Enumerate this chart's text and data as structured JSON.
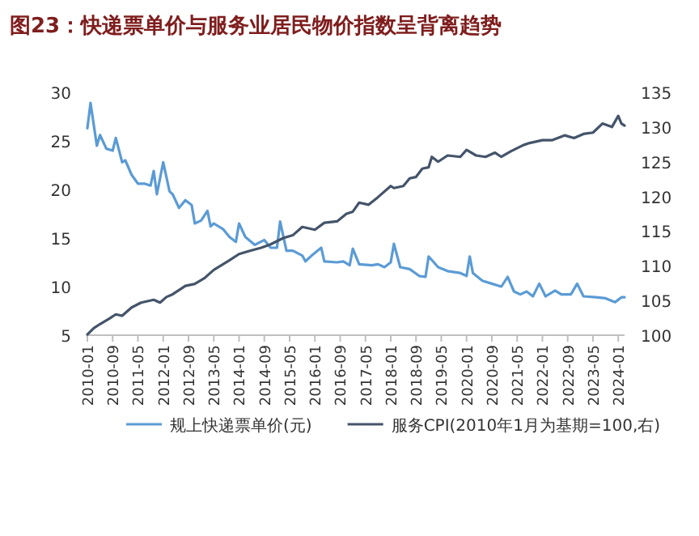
{
  "chart_data": {
    "type": "line",
    "title": "图23：快递票单价与服务业居民物价指数呈背离趋势",
    "xlim": [
      "2010-01",
      "2024-03"
    ],
    "xticks": [
      "2010-01",
      "2010-09",
      "2011-05",
      "2012-01",
      "2012-09",
      "2013-05",
      "2014-01",
      "2014-09",
      "2015-05",
      "2016-01",
      "2016-09",
      "2017-05",
      "2018-01",
      "2018-09",
      "2019-05",
      "2020-01",
      "2020-09",
      "2021-05",
      "2022-01",
      "2022-09",
      "2023-05",
      "2024-01"
    ],
    "ylim": [
      5,
      30
    ],
    "yticks": [
      5,
      10,
      15,
      20,
      25,
      30
    ],
    "y2lim": [
      100,
      135
    ],
    "y2ticks": [
      100,
      105,
      110,
      115,
      120,
      125,
      130,
      135
    ],
    "legend": "bottom",
    "line_style": "solid",
    "series": [
      {
        "name": "规上快递票单价(元)",
        "color": "#5b9bd5",
        "x": [
          "2010-01",
          "2010-02",
          "2010-04",
          "2010-05",
          "2010-07",
          "2010-09",
          "2010-10",
          "2010-12",
          "2011-01",
          "2011-03",
          "2011-05",
          "2011-07",
          "2011-09",
          "2011-10",
          "2011-11",
          "2012-01",
          "2012-03",
          "2012-04",
          "2012-06",
          "2012-08",
          "2012-10",
          "2012-11",
          "2013-01",
          "2013-03",
          "2013-04",
          "2013-05",
          "2013-08",
          "2013-10",
          "2013-12",
          "2014-01",
          "2014-03",
          "2014-06",
          "2014-09",
          "2014-11",
          "2015-01",
          "2015-02",
          "2015-04",
          "2015-06",
          "2015-09",
          "2015-10",
          "2015-12",
          "2016-03",
          "2016-04",
          "2016-08",
          "2016-10",
          "2016-12",
          "2017-01",
          "2017-03",
          "2017-07",
          "2017-09",
          "2017-11",
          "2018-01",
          "2018-02",
          "2018-04",
          "2018-07",
          "2018-10",
          "2018-12",
          "2019-01",
          "2019-04",
          "2019-07",
          "2019-11",
          "2020-01",
          "2020-02",
          "2020-03",
          "2020-06",
          "2020-09",
          "2020-12",
          "2021-02",
          "2021-04",
          "2021-06",
          "2021-08",
          "2021-10",
          "2021-12",
          "2022-02",
          "2022-05",
          "2022-07",
          "2022-10",
          "2022-12",
          "2023-02",
          "2023-06",
          "2023-09",
          "2023-12",
          "2024-02",
          "2024-03"
        ],
        "values": [
          26.3,
          28.9,
          24.5,
          25.6,
          24.2,
          24.0,
          25.3,
          22.8,
          23.0,
          21.5,
          20.6,
          20.6,
          20.4,
          21.9,
          19.5,
          22.8,
          19.8,
          19.5,
          18.1,
          18.9,
          18.4,
          16.5,
          16.8,
          17.8,
          16.2,
          16.5,
          15.9,
          15.1,
          14.6,
          16.5,
          15.1,
          14.3,
          14.8,
          14.0,
          14.0,
          16.7,
          13.7,
          13.7,
          13.2,
          12.6,
          13.2,
          14.0,
          12.6,
          12.5,
          12.6,
          12.2,
          13.9,
          12.3,
          12.2,
          12.3,
          12.0,
          12.5,
          14.4,
          12.0,
          11.8,
          11.1,
          11.0,
          13.1,
          12.0,
          11.6,
          11.4,
          11.1,
          13.1,
          11.4,
          10.6,
          10.3,
          10.0,
          11.0,
          9.5,
          9.2,
          9.5,
          9.0,
          10.3,
          9.0,
          9.6,
          9.2,
          9.2,
          10.3,
          9.0,
          8.9,
          8.8,
          8.4,
          8.9,
          8.9
        ]
      },
      {
        "name": "服务CPI(2010年1月为基期=100,右)",
        "color": "#44546a",
        "axis": "y2",
        "x": [
          "2010-01",
          "2010-03",
          "2010-05",
          "2010-08",
          "2010-10",
          "2010-12",
          "2011-03",
          "2011-06",
          "2011-10",
          "2011-12",
          "2012-02",
          "2012-04",
          "2012-08",
          "2012-11",
          "2013-02",
          "2013-05",
          "2013-10",
          "2014-01",
          "2014-04",
          "2014-08",
          "2014-11",
          "2015-03",
          "2015-06",
          "2015-09",
          "2016-01",
          "2016-04",
          "2016-08",
          "2016-11",
          "2017-01",
          "2017-03",
          "2017-06",
          "2017-09",
          "2018-01",
          "2018-02",
          "2018-05",
          "2018-07",
          "2018-09",
          "2018-11",
          "2019-01",
          "2019-02",
          "2019-04",
          "2019-07",
          "2019-11",
          "2020-01",
          "2020-04",
          "2020-07",
          "2020-10",
          "2020-12",
          "2021-03",
          "2021-07",
          "2021-09",
          "2022-01",
          "2022-04",
          "2022-08",
          "2022-11",
          "2023-02",
          "2023-05",
          "2023-08",
          "2023-11",
          "2024-01",
          "2024-02",
          "2024-03"
        ],
        "values": [
          100.1,
          101.0,
          101.6,
          102.4,
          103.0,
          102.8,
          104.0,
          104.7,
          105.1,
          104.7,
          105.5,
          105.9,
          107.1,
          107.4,
          108.2,
          109.4,
          110.8,
          111.7,
          112.1,
          112.6,
          113.1,
          114.0,
          114.4,
          115.6,
          115.2,
          116.2,
          116.4,
          117.5,
          117.8,
          119.1,
          118.8,
          119.9,
          121.5,
          121.2,
          121.5,
          122.6,
          122.8,
          124.0,
          124.2,
          125.7,
          125.0,
          125.9,
          125.7,
          126.7,
          125.9,
          125.7,
          126.3,
          125.7,
          126.5,
          127.4,
          127.7,
          128.1,
          128.1,
          128.8,
          128.4,
          129.0,
          129.2,
          130.5,
          130.0,
          131.6,
          130.5,
          130.2
        ]
      }
    ]
  }
}
